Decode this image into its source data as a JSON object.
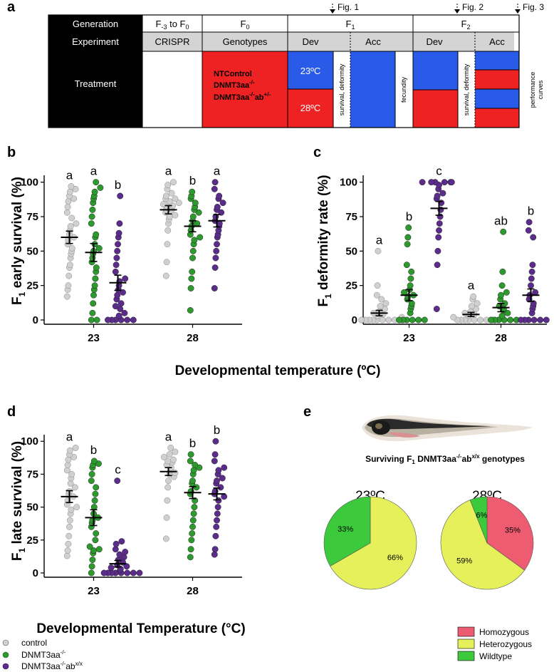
{
  "panel_a": {
    "label": "a",
    "fig_markers": [
      "Fig. 1",
      "Fig. 2",
      "Fig. 3"
    ],
    "rows": {
      "generation": "Generation",
      "experiment": "Experiment",
      "treatment": "Treatment"
    },
    "generations": {
      "g0_base": "F",
      "g0_sub": "-3",
      "g0_mid": " to F",
      "g0_sub2": "0",
      "f0_base": "F",
      "f0_sub": "0",
      "f1_base": "F",
      "f1_sub": "1",
      "f2_base": "F",
      "f2_sub": "2"
    },
    "experiments": {
      "crispr": "CRISPR",
      "genotypes": "Genotypes",
      "dev1": "Dev",
      "acc1": "Acc",
      "dev2": "Dev",
      "acc2": "Acc"
    },
    "genotype_lines": [
      "NTControl",
      "DNMT3aa",
      "DNMT3aa",
      "ab"
    ],
    "genotype_sup": [
      "-/-",
      "-/-",
      "+/-"
    ],
    "temps": [
      "23ºC",
      "28ºC"
    ],
    "vertical_labels": [
      "survival, deformity",
      "fecundity",
      "survival, deformity",
      "performance curves"
    ],
    "colors": {
      "blue": "#2a5ae8",
      "red": "#ee2222",
      "black": "#000000",
      "grey": "#d4d4d4"
    }
  },
  "panel_b": {
    "label": "b",
    "ylabel_base": "F",
    "ylabel_sub": "1",
    "ylabel_rest": " early survival (%)",
    "xlabel": "Developmental temperature (ºC)",
    "chart_data": {
      "type": "scatter",
      "categories": [
        "23",
        "28"
      ],
      "yticks": [
        0,
        25,
        50,
        75,
        100
      ],
      "ylim": [
        0,
        105
      ],
      "letters": [
        [
          "a",
          "a",
          "b"
        ],
        [
          "a",
          "b",
          "a"
        ]
      ],
      "series": [
        {
          "color": "#d0d0d0",
          "means": [
            60,
            80
          ],
          "sem": [
            4.5,
            3
          ],
          "values": [
            [
              17,
              22,
              25,
              32,
              38,
              40,
              45,
              48,
              50,
              52,
              55,
              58,
              60,
              62,
              65,
              68,
              70,
              74,
              78,
              82,
              86,
              88,
              90,
              93,
              95,
              97
            ],
            [
              32,
              42,
              55,
              65,
              70,
              73,
              75,
              76,
              78,
              80,
              80,
              82,
              83,
              84,
              85,
              86,
              88,
              88,
              90,
              92,
              95,
              98,
              100
            ]
          ]
        },
        {
          "color": "#2c9a2c",
          "means": [
            49,
            68
          ],
          "sem": [
            6.5,
            4
          ],
          "values": [
            [
              0,
              0,
              5,
              12,
              18,
              22,
              25,
              30,
              35,
              38,
              42,
              45,
              48,
              50,
              52,
              55,
              60,
              62,
              70,
              75,
              80,
              85,
              88,
              90,
              93,
              96,
              100
            ],
            [
              7,
              23,
              30,
              35,
              45,
              50,
              55,
              58,
              60,
              62,
              65,
              68,
              70,
              72,
              75,
              78,
              80,
              82,
              85,
              88,
              90,
              93
            ]
          ]
        },
        {
          "color": "#5c2c8c",
          "means": [
            27,
            72
          ],
          "sem": [
            5.5,
            4.5
          ],
          "values": [
            [
              0,
              0,
              0,
              0,
              0,
              0,
              3,
              5,
              8,
              10,
              12,
              15,
              18,
              20,
              22,
              25,
              28,
              30,
              35,
              40,
              45,
              50,
              55,
              60,
              63,
              70,
              90
            ],
            [
              23,
              38,
              45,
              50,
              55,
              60,
              62,
              65,
              68,
              70,
              72,
              75,
              78,
              80,
              82,
              85,
              88,
              90,
              95,
              100
            ]
          ]
        }
      ]
    }
  },
  "panel_c": {
    "label": "c",
    "ylabel_base": "F",
    "ylabel_sub": "1",
    "ylabel_rest": " deformity rate (%)",
    "chart_data": {
      "type": "scatter",
      "categories": [
        "23",
        "28"
      ],
      "yticks": [
        0,
        25,
        50,
        75,
        100
      ],
      "ylim": [
        0,
        105
      ],
      "letters": [
        [
          "a",
          "b",
          "c"
        ],
        [
          "a",
          "ab",
          "b"
        ]
      ],
      "series": [
        {
          "color": "#d0d0d0",
          "means": [
            5,
            4
          ],
          "sem": [
            2,
            1.5
          ],
          "values": [
            [
              0,
              0,
              0,
              0,
              0,
              0,
              0,
              0,
              0,
              2,
              3,
              4,
              5,
              6,
              8,
              10,
              12,
              15,
              18,
              25,
              50
            ],
            [
              0,
              0,
              0,
              0,
              0,
              0,
              0,
              0,
              2,
              3,
              4,
              5,
              6,
              8,
              10,
              12,
              15,
              17
            ]
          ]
        },
        {
          "color": "#2c9a2c",
          "means": [
            18,
            9
          ],
          "sem": [
            4,
            3
          ],
          "values": [
            [
              0,
              0,
              0,
              0,
              0,
              0,
              5,
              8,
              10,
              12,
              15,
              17,
              18,
              20,
              22,
              25,
              30,
              35,
              40,
              55,
              60,
              67
            ],
            [
              0,
              0,
              0,
              0,
              0,
              0,
              3,
              5,
              7,
              8,
              10,
              12,
              15,
              18,
              20,
              25,
              35,
              64
            ]
          ]
        },
        {
          "color": "#5c2c8c",
          "means": [
            81,
            18
          ],
          "sem": [
            5,
            4.5
          ],
          "values": [
            [
              8,
              40,
              50,
              60,
              65,
              70,
              75,
              80,
              85,
              88,
              90,
              92,
              95,
              98,
              100,
              100,
              100,
              100,
              100,
              100
            ],
            [
              0,
              0,
              0,
              0,
              0,
              0,
              5,
              8,
              10,
              12,
              15,
              18,
              20,
              25,
              30,
              35,
              40,
              60,
              65,
              71
            ]
          ]
        }
      ]
    }
  },
  "panel_d": {
    "label": "d",
    "ylabel_base": "F",
    "ylabel_sub": "1",
    "ylabel_rest": " late survival (%)",
    "xlabel": "Developmental Temperature (°C)",
    "chart_data": {
      "type": "scatter",
      "categories": [
        "23",
        "28"
      ],
      "yticks": [
        0,
        25,
        50,
        75,
        100
      ],
      "ylim": [
        0,
        105
      ],
      "letters": [
        [
          "a",
          "b",
          "c"
        ],
        [
          "a",
          "b",
          "b"
        ]
      ],
      "series": [
        {
          "color": "#d0d0d0",
          "means": [
            58,
            77
          ],
          "sem": [
            4.5,
            3
          ],
          "values": [
            [
              13,
              17,
              22,
              28,
              35,
              40,
              45,
              48,
              50,
              52,
              55,
              58,
              60,
              62,
              65,
              68,
              72,
              75,
              78,
              82,
              86,
              88,
              90,
              93,
              95
            ],
            [
              26,
              42,
              55,
              65,
              70,
              73,
              75,
              76,
              78,
              80,
              82,
              84,
              85,
              86,
              88,
              90,
              92,
              95
            ]
          ]
        },
        {
          "color": "#2c9a2c",
          "means": [
            42,
            61
          ],
          "sem": [
            6,
            4.5
          ],
          "values": [
            [
              0,
              5,
              10,
              15,
              17,
              18,
              20,
              25,
              30,
              35,
              38,
              40,
              42,
              45,
              50,
              55,
              60,
              65,
              70,
              75,
              80,
              82,
              83,
              85
            ],
            [
              12,
              18,
              25,
              30,
              35,
              40,
              45,
              50,
              55,
              60,
              62,
              65,
              68,
              70,
              75,
              78,
              80,
              82,
              85,
              90
            ]
          ]
        },
        {
          "color": "#5c2c8c",
          "means": [
            7,
            60
          ],
          "sem": [
            2.5,
            4.5
          ],
          "values": [
            [
              0,
              0,
              0,
              0,
              0,
              0,
              0,
              0,
              2,
              3,
              4,
              5,
              6,
              8,
              10,
              12,
              14,
              16,
              18,
              22,
              24,
              70
            ],
            [
              14,
              18,
              28,
              35,
              40,
              45,
              50,
              55,
              58,
              60,
              62,
              65,
              68,
              70,
              72,
              75,
              78,
              80,
              85,
              90,
              100
            ]
          ]
        }
      ]
    }
  },
  "legend_d": {
    "items": [
      {
        "text": "control",
        "sup": "",
        "color": "#d0d0d0"
      },
      {
        "text": "DNMT3aa",
        "sup": "-/-",
        "color": "#2c9a2c"
      },
      {
        "text": "DNMT3aa",
        "sup": "-/-",
        "text2": "ab",
        "sup2": "x/x",
        "color": "#5c2c8c"
      }
    ]
  },
  "panel_e": {
    "label": "e",
    "title_parts": [
      "Surviving F",
      "1",
      " DNMT3aa",
      "-/-",
      "ab",
      "x/x",
      " genotypes"
    ],
    "chart_data": [
      {
        "type": "pie",
        "title": "23ºC",
        "slices": [
          {
            "name": "Heterozygous",
            "value": 66,
            "label": "66%",
            "color": "#e6f05a"
          },
          {
            "name": "Wildtype",
            "value": 33,
            "label": "33%",
            "color": "#3cc93c"
          }
        ]
      },
      {
        "type": "pie",
        "title": "28ºC",
        "slices": [
          {
            "name": "Homozygous",
            "value": 35,
            "label": "35%",
            "color": "#ee5c72"
          },
          {
            "name": "Heterozygous",
            "value": 59,
            "label": "59%",
            "color": "#e6f05a"
          },
          {
            "name": "Wildtype",
            "value": 6,
            "label": "6%",
            "color": "#3cc93c"
          }
        ]
      }
    ],
    "legend": [
      {
        "name": "Homozygous",
        "color": "#ee5c72"
      },
      {
        "name": "Heterozygous",
        "color": "#e6f05a"
      },
      {
        "name": "Wildtype",
        "color": "#3cc93c"
      }
    ]
  }
}
